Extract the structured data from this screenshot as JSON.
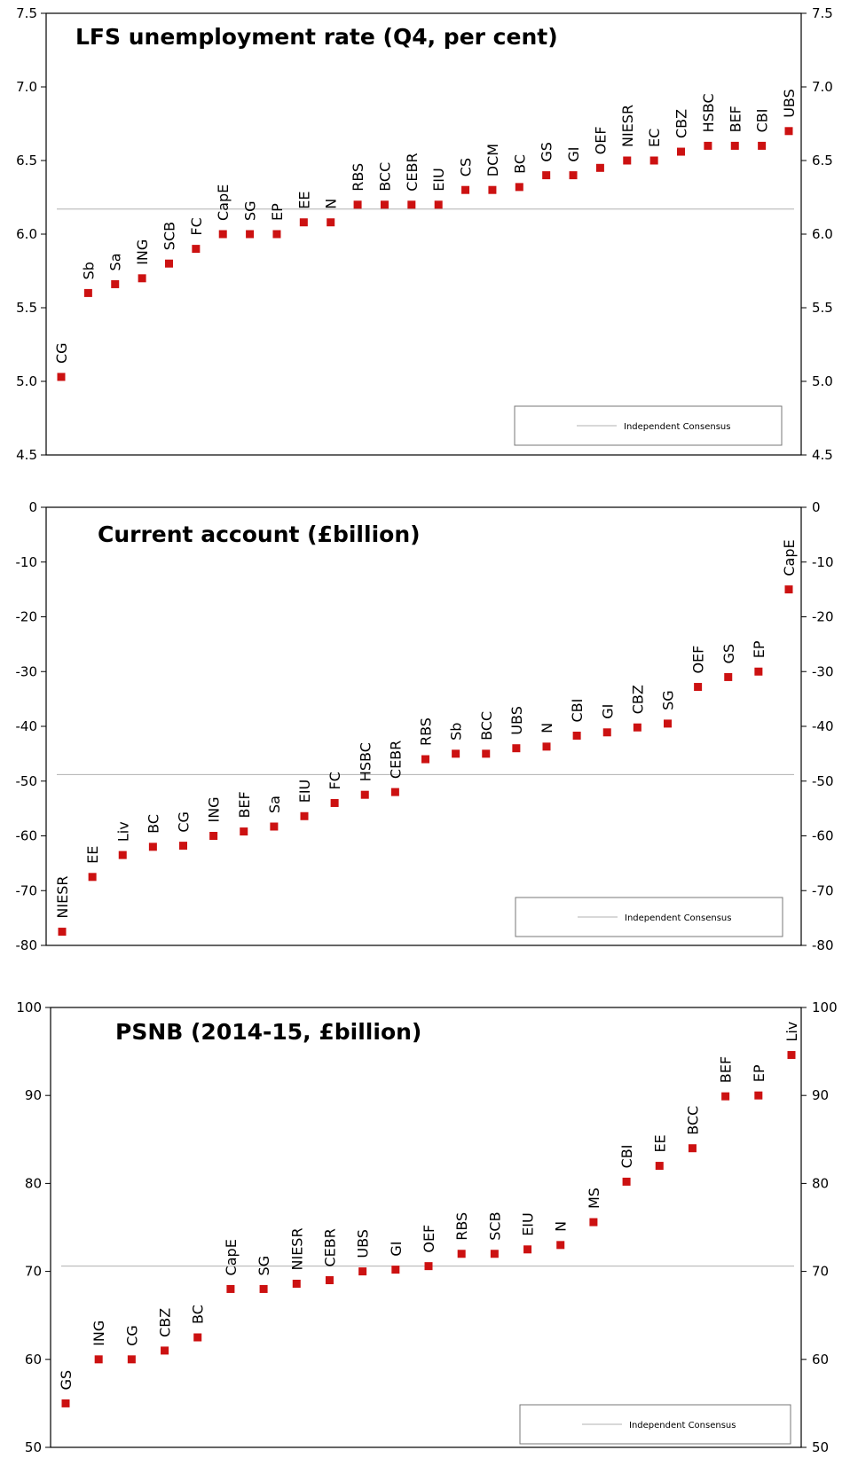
{
  "colors": {
    "marker": "#cc1111",
    "consensus_line": "#b0b0b0",
    "axis": "#000000",
    "legend_border": "#777777"
  },
  "chart_data": [
    {
      "type": "scatter",
      "title": "LFS unemployment rate  (Q4, per cent)",
      "ylim": [
        4.5,
        7.5
      ],
      "yticks": [
        "4.5",
        "5.0",
        "5.5",
        "6.0",
        "6.5",
        "7.0",
        "7.5"
      ],
      "legend": "Independent Consensus",
      "consensus": 6.17,
      "categories": [
        "CG",
        "Sb",
        "Sa",
        "ING",
        "SCB",
        "FC",
        "CapE",
        "SG",
        "EP",
        "EE",
        "N",
        "RBS",
        "BCC",
        "CEBR",
        "EIU",
        "CS",
        "DCM",
        "BC",
        "GS",
        "GI",
        "OEF",
        "NIESR",
        "EC",
        "CBZ",
        "HSBC",
        "BEF",
        "CBI",
        "UBS"
      ],
      "values": [
        5.03,
        5.6,
        5.66,
        5.7,
        5.8,
        5.9,
        6.0,
        6.0,
        6.0,
        6.08,
        6.08,
        6.2,
        6.2,
        6.2,
        6.2,
        6.3,
        6.3,
        6.32,
        6.4,
        6.4,
        6.45,
        6.5,
        6.5,
        6.56,
        6.6,
        6.6,
        6.6,
        6.7
      ]
    },
    {
      "type": "scatter",
      "title": "Current account (£billion)",
      "ylim": [
        -80,
        0
      ],
      "yticks": [
        "-80",
        "-70",
        "-60",
        "-50",
        "-40",
        "-30",
        "-20",
        "-10",
        "0"
      ],
      "legend": "Independent Consensus",
      "consensus": -48.8,
      "categories": [
        "NIESR",
        "EE",
        "Liv",
        "BC",
        "CG",
        "ING",
        "BEF",
        "Sa",
        "EIU",
        "FC",
        "HSBC",
        "CEBR",
        "RBS",
        "Sb",
        "BCC",
        "UBS",
        "N",
        "CBI",
        "GI",
        "CBZ",
        "SG",
        "OEF",
        "GS",
        "EP",
        "CapE"
      ],
      "values": [
        -77.5,
        -67.5,
        -63.5,
        -62,
        -61.8,
        -60,
        -59.2,
        -58.3,
        -56.4,
        -54,
        -52.5,
        -52,
        -46,
        -45,
        -45,
        -44,
        -43.7,
        -41.7,
        -41.1,
        -40.2,
        -39.5,
        -32.8,
        -31,
        -30,
        -15
      ]
    },
    {
      "type": "scatter",
      "title": "PSNB (2014-15, £billion)",
      "ylim": [
        50,
        100
      ],
      "yticks": [
        "50",
        "60",
        "70",
        "80",
        "90",
        "100"
      ],
      "legend": "Independent Consensus",
      "consensus": 70.6,
      "categories": [
        "GS",
        "ING",
        "CG",
        "CBZ",
        "BC",
        "CapE",
        "SG",
        "NIESR",
        "CEBR",
        "UBS",
        "GI",
        "OEF",
        "RBS",
        "SCB",
        "EIU",
        "N",
        "MS",
        "CBI",
        "EE",
        "BCC",
        "BEF",
        "EP",
        "Liv"
      ],
      "values": [
        55,
        60,
        60,
        61,
        62.5,
        68,
        68,
        68.6,
        69,
        70,
        70.2,
        70.6,
        72,
        72,
        72.5,
        73,
        75.6,
        80.2,
        82,
        84,
        89.9,
        90,
        94.6
      ]
    }
  ]
}
